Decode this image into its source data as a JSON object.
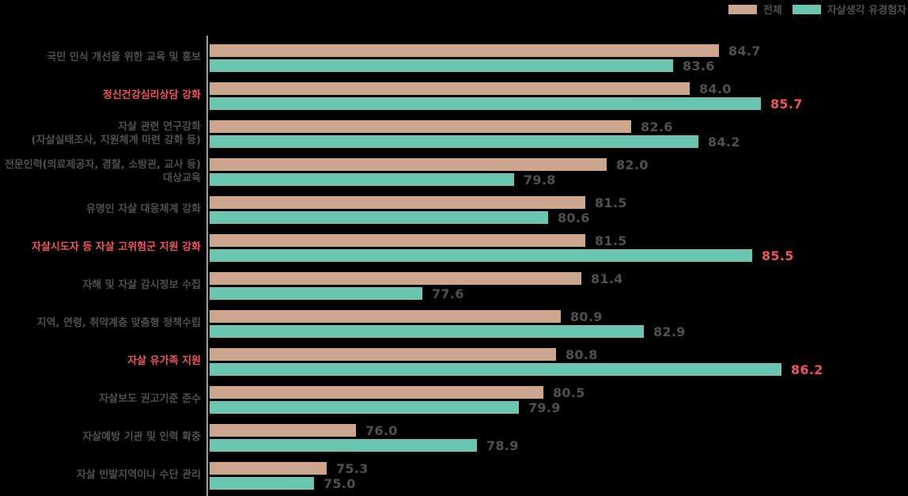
{
  "legend": {
    "series1_label": "전체",
    "series2_label": "자살생각 유경험자"
  },
  "colors": {
    "series1": "#cca68d",
    "series2": "#6bc6b1",
    "highlight": "#f2535c",
    "text": "#4f5052",
    "axis_line": "#9b9b9b",
    "background": "#000000"
  },
  "chart_data": {
    "type": "bar",
    "orientation": "horizontal",
    "legend_position": "top-right",
    "grid": false,
    "value_axis_visible": false,
    "xlim_estimate": [
      72.5,
      87
    ],
    "categories": [
      "국민 인식 개선을 위한 교육 및 홍보",
      "정신건강심리상담 강화",
      "자살 관련 연구강화\n(자살실태조사, 지원체계 마련 강화 등)",
      "전문인력(의료제공자, 경찰, 소방관, 교사 등)\n대상교육",
      "유명인 자살 대응체계 강화",
      "자살시도자 등 자살 고위험군 지원 강화",
      "자해 및 자살 감시정보 수집",
      "지역, 연령, 취약계층 맞춤형 정책수립",
      "자살 유가족 지원",
      "자살보도 권고기준 준수",
      "자살예방 기관 및 인력 확충",
      "자살 빈발지역이나 수단 관리"
    ],
    "series": [
      {
        "name": "전체",
        "values": [
          84.7,
          84.0,
          82.6,
          82.0,
          81.5,
          81.5,
          81.4,
          80.9,
          80.8,
          80.5,
          76.0,
          75.3
        ]
      },
      {
        "name": "자살생각 유경험자",
        "values": [
          83.6,
          85.7,
          84.2,
          79.8,
          80.6,
          85.5,
          77.6,
          82.9,
          86.2,
          79.9,
          78.9,
          75.0
        ]
      }
    ],
    "highlighted_rows": [
      1,
      5,
      8
    ],
    "highlighted_values": [
      85.7,
      85.5,
      86.2
    ]
  }
}
